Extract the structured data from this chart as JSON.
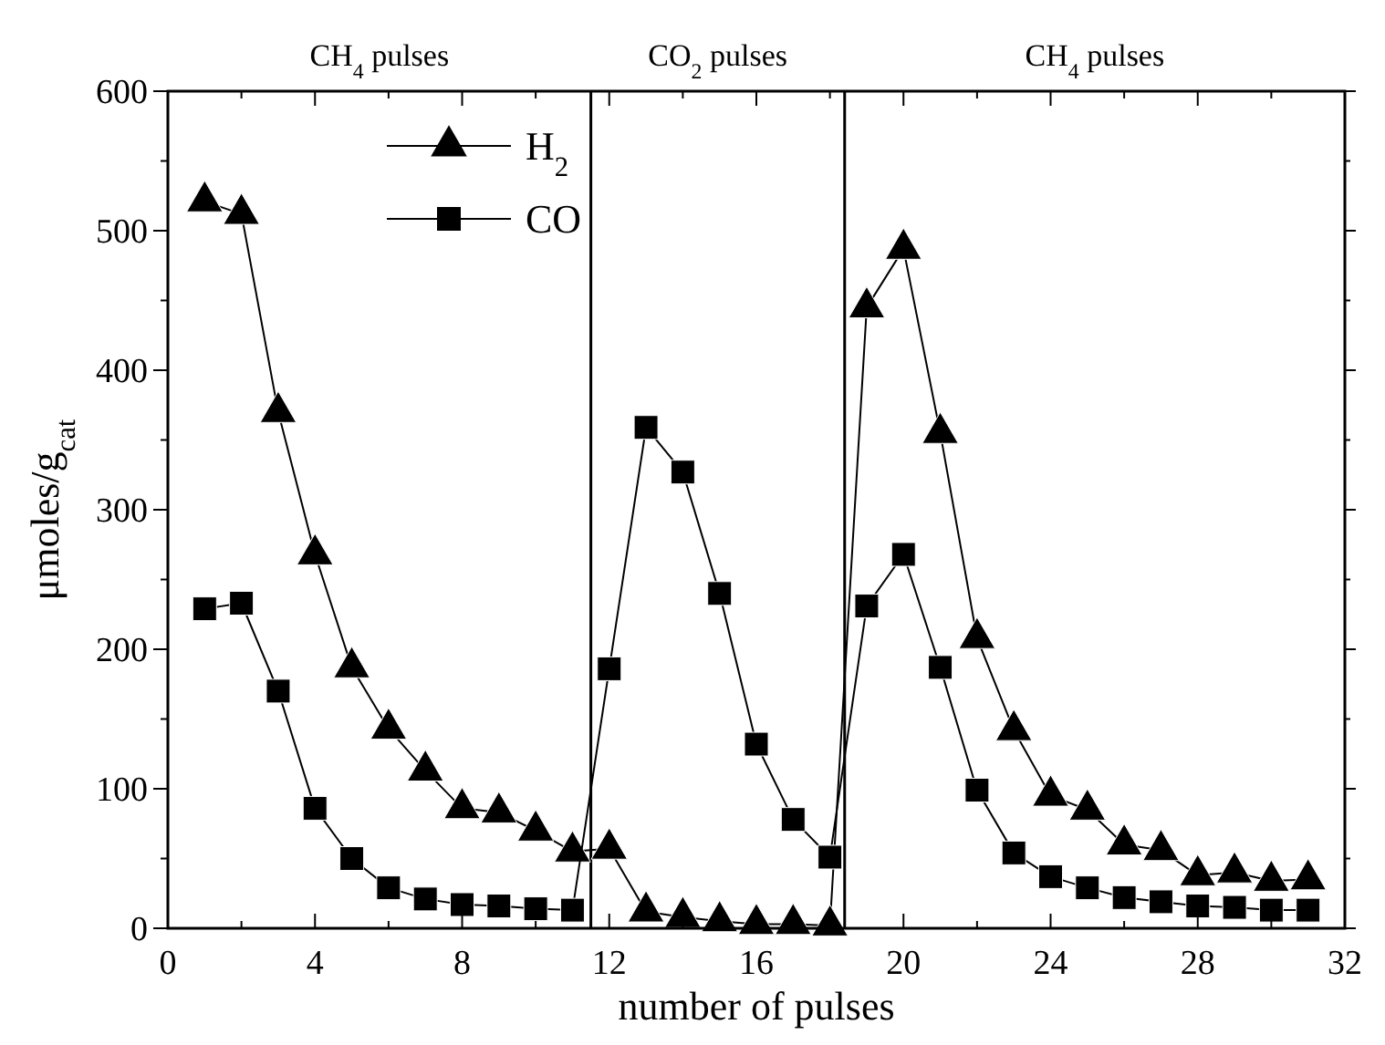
{
  "chart_data": {
    "type": "line",
    "xlabel": "number of pulses",
    "ylabel": "μmoles/g$_{cat}$",
    "x": [
      1,
      2,
      3,
      4,
      5,
      6,
      7,
      8,
      9,
      10,
      11,
      12,
      13,
      14,
      15,
      16,
      17,
      18,
      19,
      20,
      21,
      22,
      23,
      24,
      25,
      26,
      27,
      28,
      29,
      30,
      31
    ],
    "series": [
      {
        "name": "H$_{2}$",
        "color": "#000000",
        "marker": "triangle",
        "values": [
          521,
          512,
          370,
          268,
          187,
          143,
          113,
          86,
          83,
          70,
          55,
          57,
          12,
          8,
          5,
          3,
          3,
          2,
          445,
          487,
          355,
          208,
          142,
          95,
          85,
          60,
          56,
          38,
          40,
          34,
          35
        ]
      },
      {
        "name": "CO",
        "color": "#000000",
        "marker": "square",
        "values": [
          229,
          233,
          170,
          86,
          50,
          29,
          21,
          17,
          16,
          14,
          13,
          186,
          359,
          327,
          240,
          132,
          78,
          51,
          231,
          268,
          187,
          99,
          54,
          37,
          29,
          22,
          19,
          16,
          15,
          13,
          13
        ]
      }
    ],
    "xlim": [
      0,
      32
    ],
    "xticks": [
      0,
      4,
      8,
      12,
      16,
      20,
      24,
      28,
      32
    ],
    "ylim": [
      0,
      600
    ],
    "yticks": [
      0,
      100,
      200,
      300,
      400,
      500,
      600
    ],
    "ref_lines": [
      {
        "axis": "x",
        "value": 11.5
      },
      {
        "axis": "x",
        "value": 18.4
      }
    ],
    "annotations": [
      "CH$_{4}$ pulses",
      "CO$_{2}$ pulses",
      "CH$_{4}$ pulses"
    ],
    "legend": "top left",
    "grid": false,
    "line_style": "solid"
  }
}
